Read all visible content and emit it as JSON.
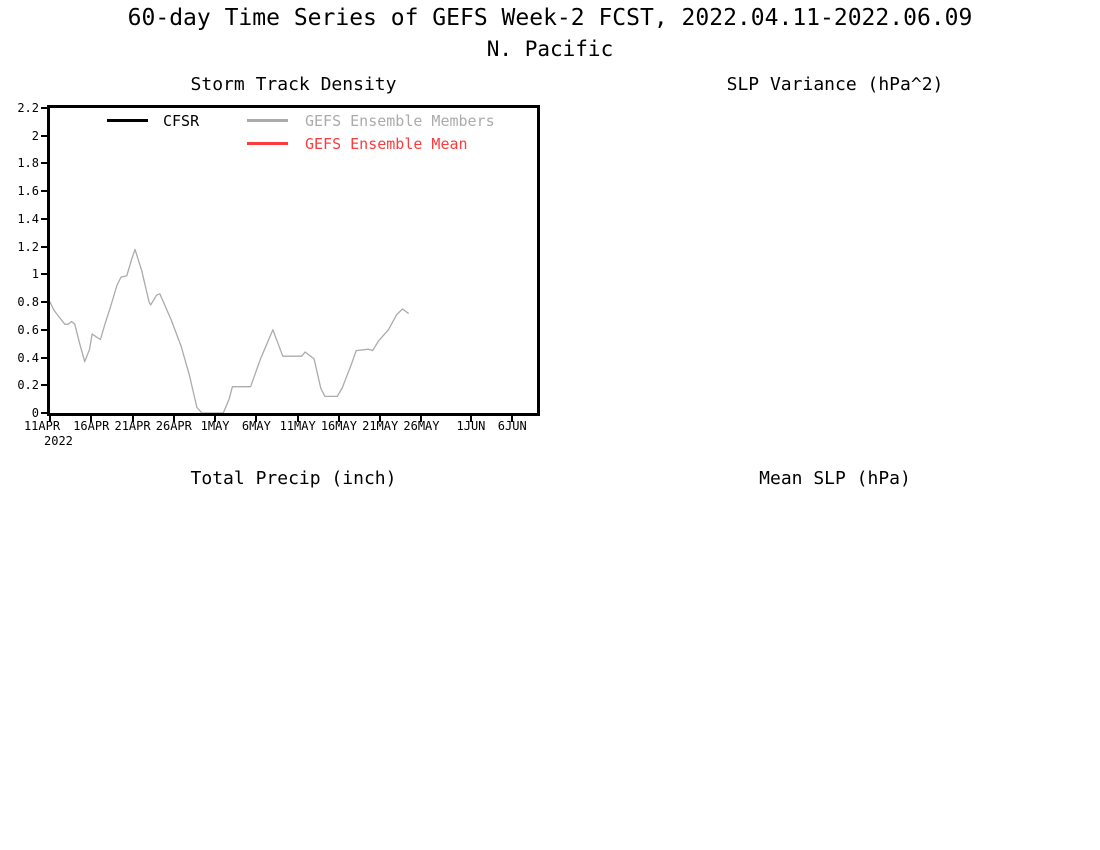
{
  "header": {
    "title": "60-day Time Series of GEFS Week-2 FCST, 2022.04.11-2022.06.09",
    "subtitle": "N. Pacific"
  },
  "panels": [
    {
      "id": "storm-track-density",
      "title": "Storm Track Density"
    },
    {
      "id": "slp-variance",
      "title": "SLP Variance (hPa^2)"
    },
    {
      "id": "total-precip",
      "title": "Total Precip (inch)"
    },
    {
      "id": "mean-slp",
      "title": "Mean SLP (hPa)"
    }
  ],
  "chart_data": {
    "type": "line",
    "title": "Storm Track Density",
    "grid": false,
    "legend_position": "top-inside",
    "x_axis": {
      "year_label": "2022",
      "range_days": [
        0,
        59
      ],
      "ticks": [
        {
          "label": "11APR",
          "day": 0
        },
        {
          "label": "16APR",
          "day": 5
        },
        {
          "label": "21APR",
          "day": 10
        },
        {
          "label": "26APR",
          "day": 15
        },
        {
          "label": "1MAY",
          "day": 20
        },
        {
          "label": "6MAY",
          "day": 25
        },
        {
          "label": "11MAY",
          "day": 30
        },
        {
          "label": "16MAY",
          "day": 35
        },
        {
          "label": "21MAY",
          "day": 40
        },
        {
          "label": "26MAY",
          "day": 45
        },
        {
          "label": "1JUN",
          "day": 51
        },
        {
          "label": "6JUN",
          "day": 56
        }
      ]
    },
    "y_axis": {
      "range": [
        0,
        2.2
      ],
      "ticks": [
        0,
        0.2,
        0.4,
        0.6,
        0.8,
        1,
        1.2,
        1.4,
        1.6,
        1.8,
        2,
        2.2
      ]
    },
    "legend": [
      {
        "label": "CFSR",
        "color": "#000000"
      },
      {
        "label": "GEFS Ensemble Members",
        "color": "#ababab"
      },
      {
        "label": "GEFS Ensemble Mean",
        "color": "#fa3c3c"
      }
    ],
    "series": [
      {
        "name": "GEFS ensemble member",
        "color": "#ababab",
        "points": [
          [
            0,
            0.8
          ],
          [
            0.5,
            0.74
          ],
          [
            1,
            0.7
          ],
          [
            1.8,
            0.64
          ],
          [
            2.2,
            0.64
          ],
          [
            2.6,
            0.66
          ],
          [
            3.0,
            0.64
          ],
          [
            3.6,
            0.5
          ],
          [
            4.2,
            0.37
          ],
          [
            4.8,
            0.46
          ],
          [
            5.1,
            0.57
          ],
          [
            5.6,
            0.55
          ],
          [
            6.1,
            0.53
          ],
          [
            6.7,
            0.65
          ],
          [
            7.3,
            0.76
          ],
          [
            8.1,
            0.92
          ],
          [
            8.6,
            0.98
          ],
          [
            9.3,
            0.99
          ],
          [
            9.9,
            1.11
          ],
          [
            10.3,
            1.18
          ],
          [
            11.1,
            1.03
          ],
          [
            12.0,
            0.8
          ],
          [
            12.2,
            0.78
          ],
          [
            12.9,
            0.85
          ],
          [
            13.3,
            0.86
          ],
          [
            14.7,
            0.67
          ],
          [
            15.9,
            0.48
          ],
          [
            16.9,
            0.27
          ],
          [
            17.8,
            0.04
          ],
          [
            18.4,
            0.0
          ],
          [
            21.0,
            0.0
          ],
          [
            21.7,
            0.1
          ],
          [
            22.1,
            0.19
          ],
          [
            24.3,
            0.19
          ],
          [
            25.5,
            0.39
          ],
          [
            27.0,
            0.6
          ],
          [
            28.2,
            0.41
          ],
          [
            30.5,
            0.41
          ],
          [
            30.9,
            0.44
          ],
          [
            32.0,
            0.39
          ],
          [
            32.8,
            0.18
          ],
          [
            33.3,
            0.12
          ],
          [
            34.8,
            0.12
          ],
          [
            35.4,
            0.18
          ],
          [
            36.5,
            0.35
          ],
          [
            37.1,
            0.45
          ],
          [
            38.6,
            0.46
          ],
          [
            39.1,
            0.45
          ],
          [
            39.8,
            0.52
          ],
          [
            41.0,
            0.6
          ],
          [
            42.0,
            0.71
          ],
          [
            42.7,
            0.75
          ],
          [
            43.4,
            0.72
          ]
        ]
      }
    ]
  }
}
